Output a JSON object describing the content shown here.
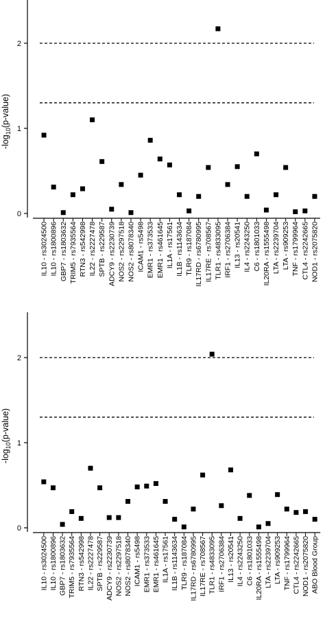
{
  "chart_data": [
    {
      "type": "scatter",
      "ylabel": "-log10(p-value)",
      "ylim": [
        0,
        2.4
      ],
      "yticks": [
        0,
        1,
        2
      ],
      "reference_lines": [
        2.0,
        1.3
      ],
      "grid": false,
      "categories": [
        "IL10 - rs3024500",
        "IL10 - rs1800896",
        "GBP7 - rs1803632",
        "TRIM5 - rs7935564",
        "RTN3 - rs542998",
        "IL22 - rs2227478",
        "SPTB - rs229587",
        "ADCY9 - rs2230739",
        "NOS2 - rs2297518",
        "NOS2 - rs8078340",
        "ICAM1 - rs5498",
        "EMR1 - rs373533",
        "EMR1 - rs461645",
        "IL1A - rs17561",
        "IL1B - rs1143634",
        "TLR9 - rs187084",
        "IL17RD - rs6780995",
        "IL17RE - rs708567",
        "TLR1 - rs4833095",
        "IRF1 - rs2706384",
        "IL13 - rs20541",
        "IL4 - rs2243250",
        "C6 - rs1801033",
        "IL20RA - rs1555498",
        "LTA - rs2239704",
        "LTA - rs909253",
        "TNF - rs1799964",
        "CTL4 - rs2242665",
        "NOD1 - rs2075820"
      ],
      "values": [
        0.92,
        0.31,
        0.01,
        0.22,
        0.29,
        1.1,
        0.61,
        0.05,
        0.34,
        0.01,
        0.45,
        0.86,
        0.64,
        0.57,
        0.22,
        0.03,
        0.2,
        0.54,
        2.17,
        0.34,
        0.55,
        0.2,
        0.7,
        0.04,
        0.22,
        0.54,
        0.02,
        0.03,
        0.2
      ]
    },
    {
      "type": "scatter",
      "ylabel": "-log10(p-value)",
      "ylim": [
        0,
        2.4
      ],
      "yticks": [
        0,
        1,
        2
      ],
      "reference_lines": [
        2.0,
        1.3
      ],
      "grid": false,
      "categories": [
        "IL10 - rs3024500",
        "IL10 - rs1800896",
        "GBP7 - rs1803632",
        "TRIM5 - rs7935564",
        "RTN3 - rs542998",
        "IL22 - rs2227478",
        "SPTB - rs229587",
        "ADCY9 - rs2230739",
        "NOS2 - rs2297518",
        "NOS2 - rs8078340",
        "ICAM1 - rs5498",
        "EMR1 - rs373533",
        "EMR1 - rs461645",
        "IL1A - rs17561",
        "IL1B - rs1143634",
        "TLR9 - rs187084",
        "IL17RD - rs6780995",
        "IL17RE - rs708567",
        "TLR1 - rs4833095",
        "IRF1 - rs2706384",
        "IL13 - rs20541",
        "IL4 - rs2243250",
        "C6 - rs1801033",
        "IL20RA - rs1555498",
        "LTA - rs2239704",
        "LTA - rs909253",
        "TNF - rs1799964",
        "CTL4 - rs2242665",
        "NOD1 - rs2075820",
        "ABO Blood Group"
      ],
      "values": [
        0.54,
        0.47,
        0.04,
        0.19,
        0.11,
        0.7,
        0.47,
        0.12,
        0.12,
        0.31,
        0.48,
        0.49,
        0.52,
        0.31,
        0.1,
        0.01,
        0.22,
        0.62,
        2.04,
        0.26,
        0.68,
        0.11,
        0.38,
        0.01,
        0.05,
        0.39,
        0.22,
        0.18,
        0.19,
        0.1
      ]
    }
  ]
}
